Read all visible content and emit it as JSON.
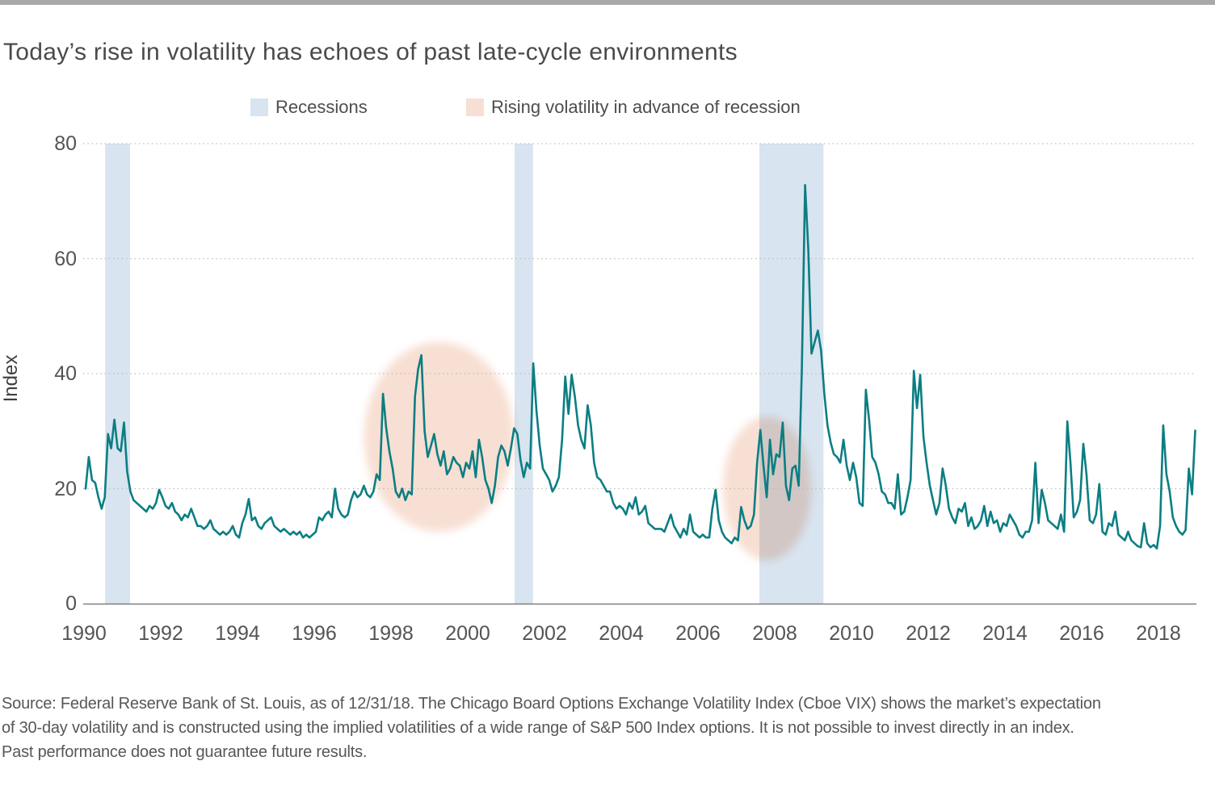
{
  "page": {
    "title": "Today’s rise in volatility has echoes of past late-cycle environments",
    "source_lines": [
      "Source: Federal Reserve Bank of St. Louis, as of 12/31/18. The Chicago Board Options Exchange Volatility Index (Cboe VIX) shows the market’s expectation",
      "of 30-day volatility and is constructed using the implied volatilities of a wide range of S&P 500 Index options. It is not possible to invest directly in an index.",
      "Past performance does not guarantee future results."
    ]
  },
  "legend": {
    "items": [
      {
        "label": "Recessions",
        "color": "#d8e4ef"
      },
      {
        "label": "Rising volatility in advance of recession",
        "color": "#f8dfd3"
      }
    ]
  },
  "chart_data": {
    "type": "line",
    "title": "Today’s rise in volatility has echoes of past late-cycle environments",
    "xlabel": "",
    "ylabel": "Index",
    "ylim": [
      0,
      80
    ],
    "xlim": [
      1990,
      2019
    ],
    "y_ticks": [
      0,
      20,
      40,
      60,
      80
    ],
    "x_ticks": [
      1990,
      1992,
      1994,
      1996,
      1998,
      2000,
      2002,
      2004,
      2006,
      2008,
      2010,
      2012,
      2014,
      2016,
      2018
    ],
    "grid": "horizontal dotted",
    "legend_position": "top",
    "line_color": "#0b7e83",
    "gridline_color": "#bdbdbd",
    "axis_color": "#7f7f7f",
    "recession_band_color": "#d8e4ef",
    "ellipse_color": "#f8dfd3",
    "recessions": [
      {
        "start": 1990.55,
        "end": 1991.2
      },
      {
        "start": 2001.22,
        "end": 2001.7
      },
      {
        "start": 2007.6,
        "end": 2009.27
      }
    ],
    "rising_vol_ellipses": [
      {
        "cx_year": 1999.25,
        "cy_value": 29.0,
        "rx_years": 1.95,
        "ry_value": 16.5
      },
      {
        "cx_year": 2007.8,
        "cy_value": 20.0,
        "rx_years": 1.15,
        "ry_value": 12.5
      }
    ],
    "series": [
      {
        "name": "Cboe VIX",
        "frequency": "monthly",
        "start_year": 1990,
        "end_year": 2018,
        "values": [
          20.0,
          25.5,
          21.5,
          21.0,
          18.5,
          16.5,
          18.5,
          29.5,
          27.0,
          32.0,
          27.0,
          26.5,
          31.5,
          23.0,
          19.5,
          18.0,
          17.5,
          17.0,
          16.5,
          16.0,
          17.0,
          16.5,
          17.5,
          19.8,
          18.5,
          17.0,
          16.5,
          17.5,
          16.0,
          15.5,
          14.5,
          15.5,
          15.0,
          16.5,
          15.0,
          13.5,
          13.5,
          13.0,
          13.5,
          14.5,
          13.0,
          12.5,
          12.0,
          12.5,
          12.0,
          12.5,
          13.5,
          12.0,
          11.5,
          14.0,
          15.5,
          18.2,
          14.5,
          15.0,
          13.5,
          13.0,
          14.0,
          14.5,
          15.0,
          13.5,
          13.0,
          12.5,
          13.0,
          12.5,
          12.0,
          12.5,
          12.0,
          12.5,
          11.5,
          12.0,
          11.5,
          12.0,
          12.5,
          15.0,
          14.5,
          15.5,
          16.0,
          15.0,
          20.0,
          16.5,
          15.5,
          15.0,
          15.5,
          18.0,
          19.5,
          18.5,
          19.0,
          20.5,
          19.0,
          18.5,
          19.5,
          22.5,
          21.5,
          36.5,
          30.5,
          26.5,
          23.5,
          19.5,
          18.5,
          20.0,
          18.0,
          19.5,
          19.0,
          36.0,
          40.8,
          43.2,
          30.0,
          25.5,
          27.5,
          29.5,
          26.0,
          24.0,
          26.5,
          22.5,
          23.5,
          25.5,
          24.5,
          24.0,
          22.0,
          24.5,
          23.5,
          26.5,
          22.0,
          28.5,
          25.5,
          21.5,
          20.0,
          17.5,
          20.5,
          25.5,
          27.5,
          26.5,
          24.0,
          27.0,
          30.5,
          29.5,
          25.0,
          22.0,
          24.5,
          23.5,
          41.8,
          33.5,
          27.5,
          23.5,
          22.5,
          21.5,
          19.5,
          20.5,
          22.0,
          28.5,
          39.5,
          33.0,
          39.8,
          36.0,
          31.0,
          28.5,
          27.0,
          34.5,
          31.0,
          24.5,
          22.0,
          21.5,
          20.5,
          19.5,
          19.5,
          17.5,
          16.5,
          17.0,
          16.5,
          15.5,
          17.5,
          16.5,
          18.5,
          15.5,
          16.0,
          17.0,
          14.0,
          13.5,
          13.0,
          13.0,
          13.0,
          12.5,
          14.0,
          15.5,
          13.5,
          12.5,
          11.5,
          13.0,
          12.0,
          15.5,
          12.5,
          12.0,
          11.5,
          12.0,
          11.5,
          11.5,
          16.5,
          19.8,
          14.5,
          12.5,
          11.5,
          11.0,
          10.5,
          11.5,
          11.0,
          16.8,
          14.5,
          13.0,
          13.5,
          15.5,
          24.5,
          30.2,
          24.0,
          18.5,
          28.5,
          22.5,
          26.0,
          25.5,
          31.5,
          20.5,
          18.0,
          23.5,
          24.0,
          20.5,
          41.0,
          72.8,
          61.5,
          43.5,
          45.5,
          47.5,
          44.0,
          36.5,
          31.0,
          28.0,
          26.0,
          25.5,
          24.5,
          28.5,
          24.0,
          21.5,
          24.5,
          22.0,
          17.5,
          17.0,
          37.2,
          32.0,
          25.5,
          24.5,
          22.5,
          19.5,
          19.0,
          17.5,
          17.5,
          16.5,
          22.5,
          15.5,
          16.0,
          18.5,
          21.5,
          40.5,
          34.0,
          39.8,
          29.0,
          24.5,
          20.5,
          18.0,
          15.5,
          17.5,
          23.5,
          20.5,
          16.5,
          15.0,
          14.0,
          16.5,
          16.0,
          17.5,
          13.5,
          15.0,
          13.0,
          13.5,
          14.5,
          17.0,
          13.5,
          16.0,
          14.0,
          14.5,
          12.5,
          14.0,
          13.5,
          15.5,
          14.5,
          13.5,
          12.0,
          11.5,
          12.5,
          12.5,
          14.5,
          24.5,
          14.0,
          19.8,
          17.5,
          14.5,
          14.0,
          13.5,
          13.0,
          15.5,
          12.5,
          31.7,
          24.5,
          15.0,
          16.0,
          18.0,
          27.8,
          22.5,
          14.5,
          14.0,
          15.5,
          20.8,
          12.5,
          12.0,
          14.0,
          13.5,
          16.0,
          12.0,
          11.5,
          11.0,
          12.5,
          11.0,
          10.5,
          10.0,
          9.8,
          14.0,
          10.5,
          9.8,
          10.2,
          9.6,
          13.5,
          31.0,
          22.5,
          19.5,
          15.0,
          13.5,
          12.5,
          12.0,
          12.8,
          23.5,
          19.0,
          30.1
        ]
      }
    ]
  }
}
